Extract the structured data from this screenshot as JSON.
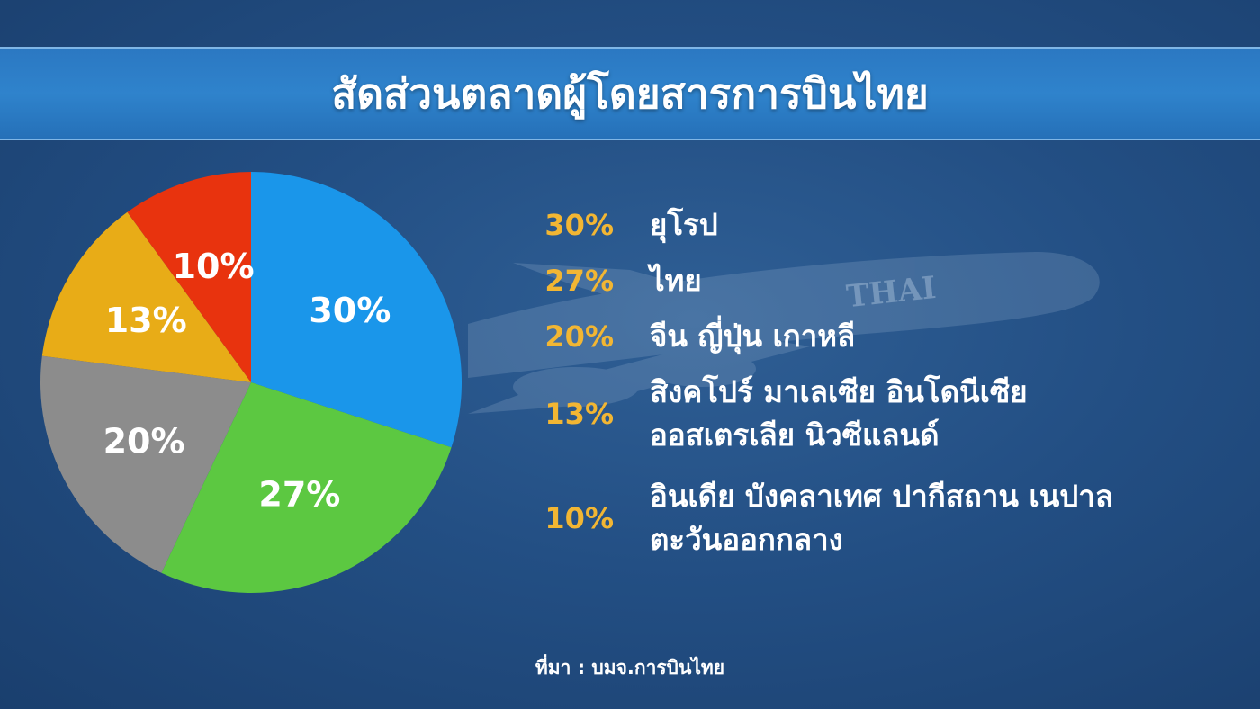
{
  "chart_data": {
    "type": "pie",
    "title": "สัดส่วนตลาดผู้โดยสารการบินไทย",
    "slices": [
      {
        "label": "ยุโรป",
        "value": 30,
        "display": "30%",
        "color": "#1a96ea"
      },
      {
        "label": "ไทย",
        "value": 27,
        "display": "27%",
        "color": "#5cc841"
      },
      {
        "label": "จีน ญี่ปุ่น เกาหลี",
        "value": 20,
        "display": "20%",
        "color": "#8c8c8c"
      },
      {
        "label": "สิงคโปร์ มาเลเซีย อินโดนีเซีย ออสเตรเลีย นิวซีแลนด์",
        "value": 13,
        "display": "13%",
        "color": "#e8ac17"
      },
      {
        "label": "อินเดีย บังคลาเทศ ปากีสถาน เนปาล ตะวันออกกลาง",
        "value": 10,
        "display": "10%",
        "color": "#e8330e"
      }
    ],
    "legend_placement": "right"
  },
  "legend": [
    {
      "pct": "30%",
      "lines": [
        "ยุโรป"
      ]
    },
    {
      "pct": "27%",
      "lines": [
        "ไทย"
      ]
    },
    {
      "pct": "20%",
      "lines": [
        "จีน ญี่ปุ่น เกาหลี"
      ]
    },
    {
      "pct": "13%",
      "lines": [
        "สิงคโปร์ มาเลเซีย อินโดนีเซีย",
        "ออสเตรเลีย นิวซีแลนด์"
      ]
    },
    {
      "pct": "10%",
      "lines": [
        "อินเดีย บังคลาเทศ ปากีสถาน เนปาล",
        "ตะวันออกกลาง"
      ]
    }
  ],
  "background_logo_text": "THAI",
  "source": "ที่มา : บมจ.การบินไทย",
  "colors": {
    "accent": "#f2b633",
    "title_bar": "#2f83cc"
  }
}
